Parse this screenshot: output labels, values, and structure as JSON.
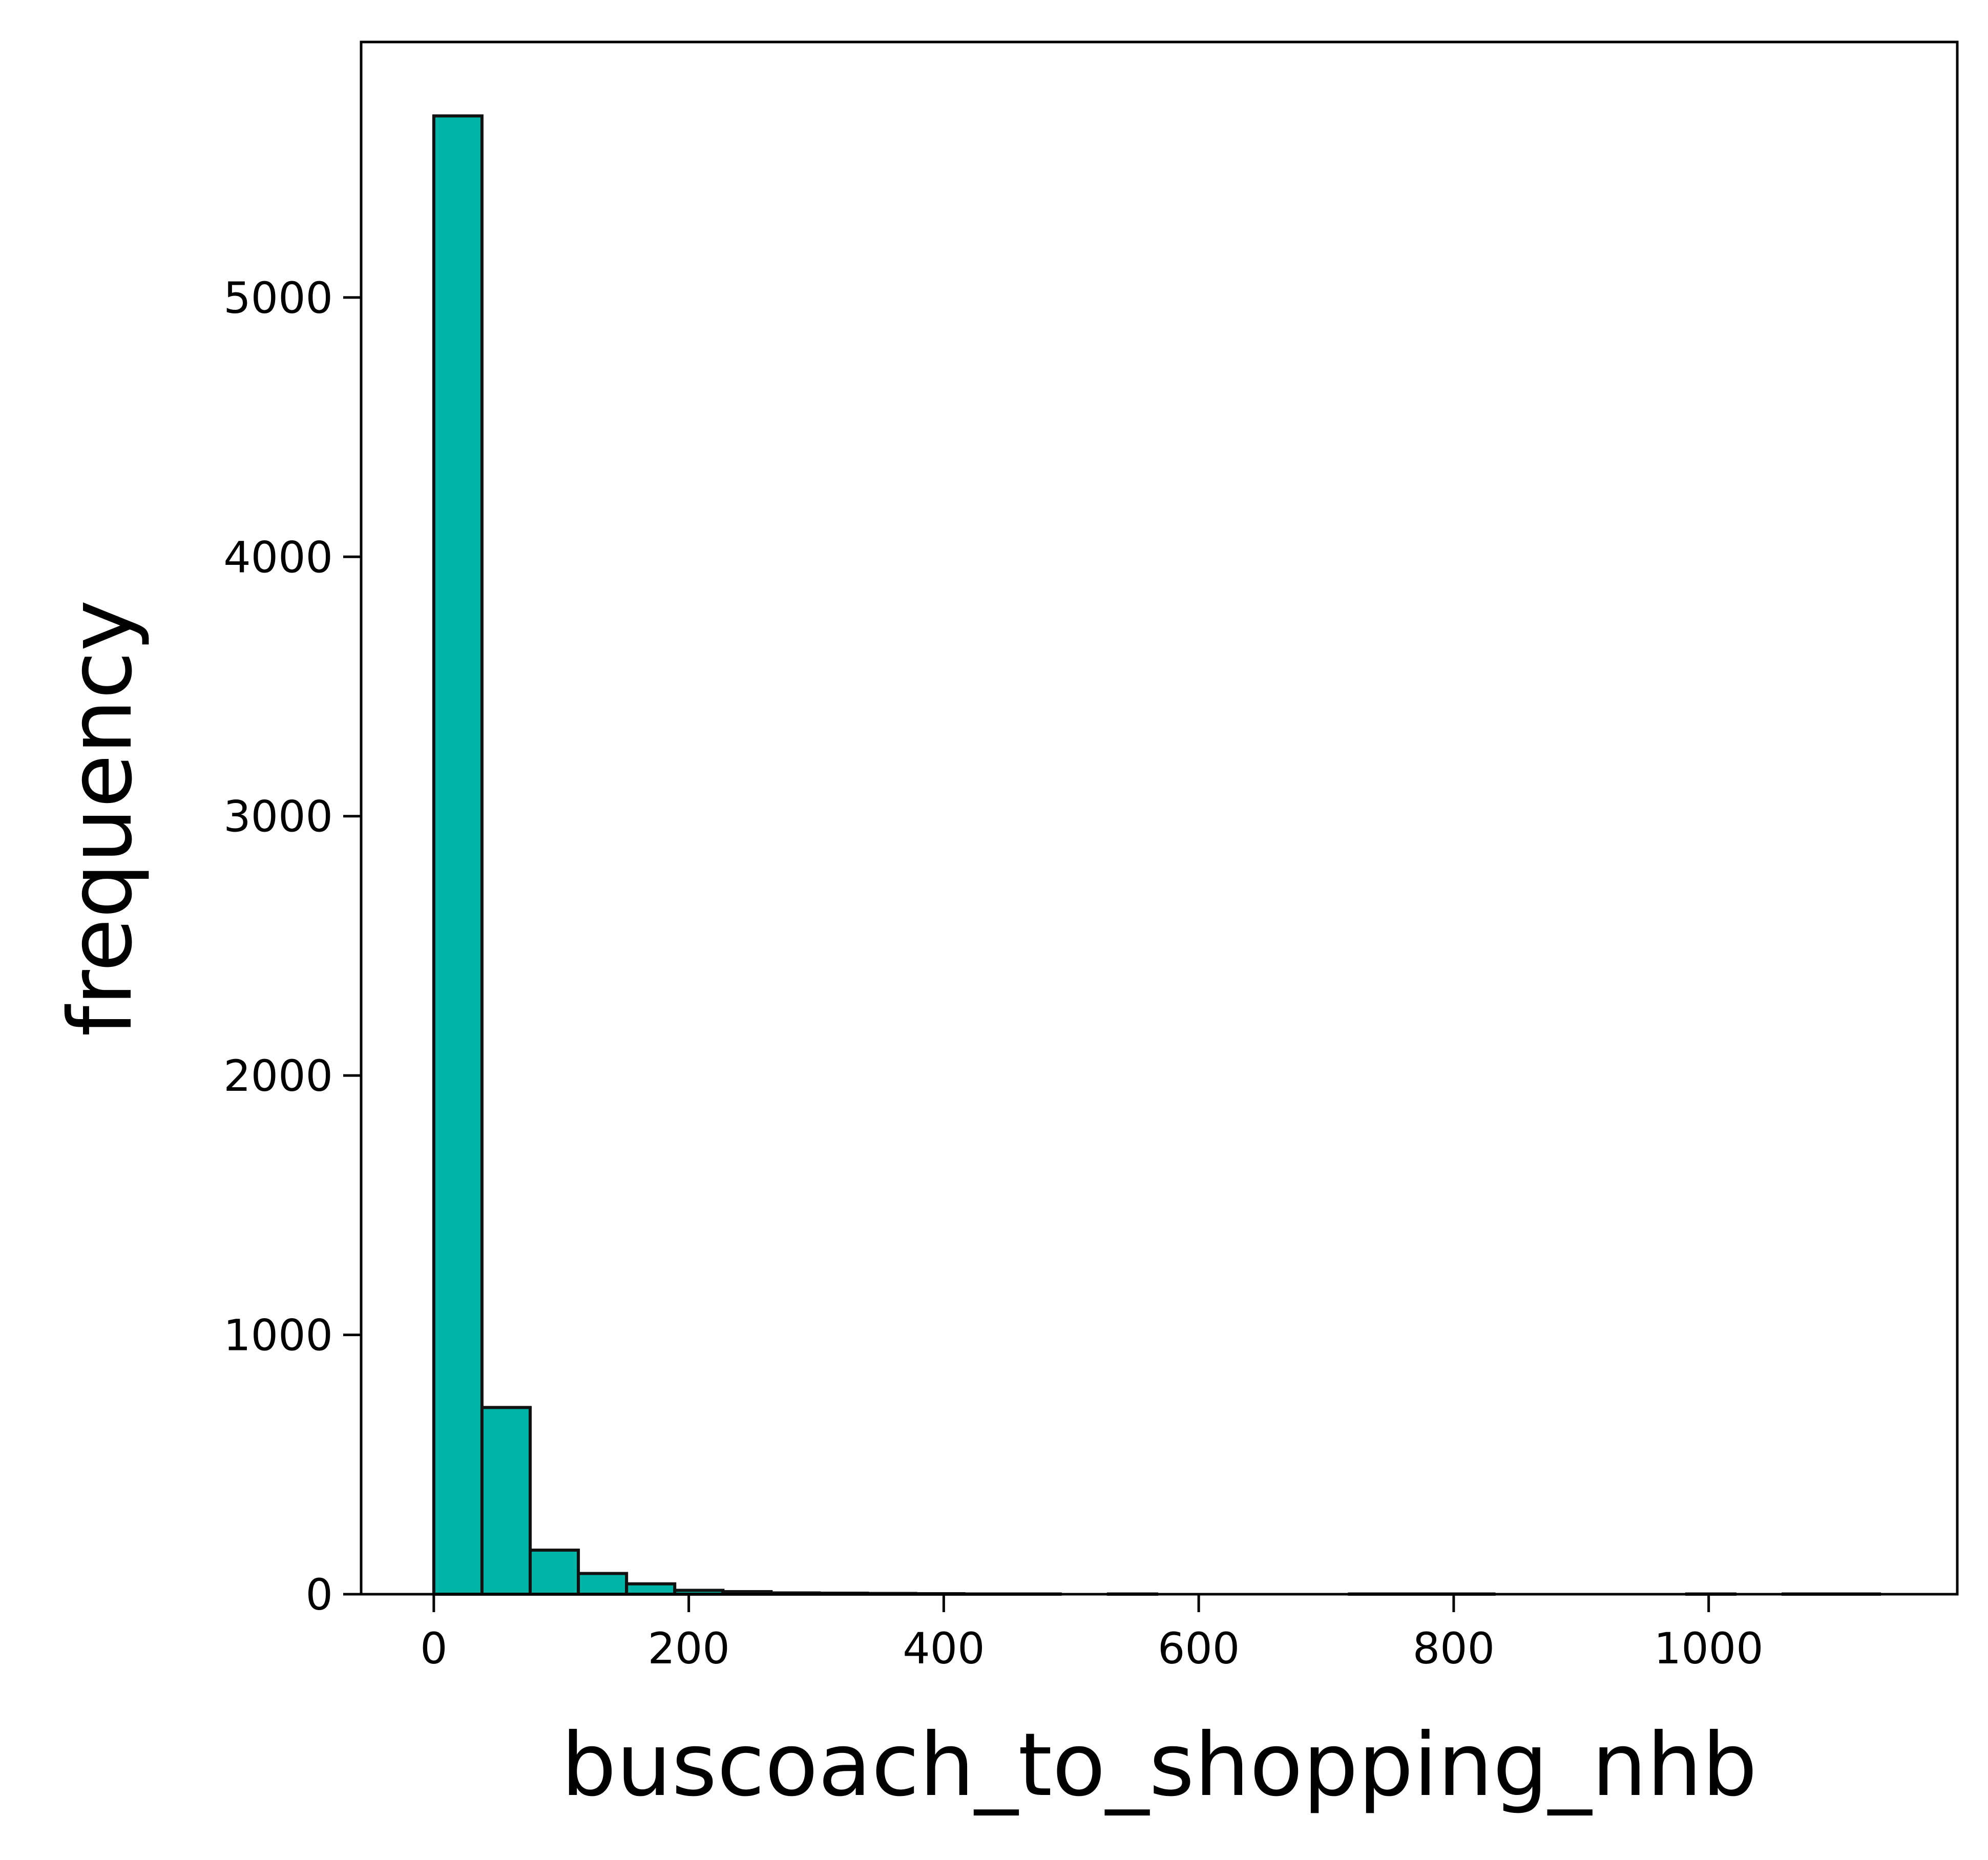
{
  "chart_data": {
    "type": "bar",
    "title": "",
    "xlabel": "buscoach_to_shopping_nhb",
    "ylabel": "frequency",
    "bar_color": "#00b4a6",
    "edge_color": "#111111",
    "grid": false,
    "bin_width": 37.8,
    "bins": [
      {
        "x0": 0.0,
        "count": 5700
      },
      {
        "x0": 37.8,
        "count": 720
      },
      {
        "x0": 75.6,
        "count": 170
      },
      {
        "x0": 113.4,
        "count": 80
      },
      {
        "x0": 151.2,
        "count": 40
      },
      {
        "x0": 189.0,
        "count": 15
      },
      {
        "x0": 226.8,
        "count": 10
      },
      {
        "x0": 264.6,
        "count": 5
      },
      {
        "x0": 302.4,
        "count": 4
      },
      {
        "x0": 340.2,
        "count": 3
      },
      {
        "x0": 378.0,
        "count": 2
      },
      {
        "x0": 415.8,
        "count": 1
      },
      {
        "x0": 453.6,
        "count": 1
      },
      {
        "x0": 491.4,
        "count": 0
      },
      {
        "x0": 529.2,
        "count": 1
      },
      {
        "x0": 567.0,
        "count": 0
      },
      {
        "x0": 604.8,
        "count": 0
      },
      {
        "x0": 642.6,
        "count": 0
      },
      {
        "x0": 680.4,
        "count": 0
      },
      {
        "x0": 718.2,
        "count": 1
      },
      {
        "x0": 756.0,
        "count": 1
      },
      {
        "x0": 793.8,
        "count": 1
      },
      {
        "x0": 831.6,
        "count": 0
      },
      {
        "x0": 869.4,
        "count": 0
      },
      {
        "x0": 907.2,
        "count": 0
      },
      {
        "x0": 945.0,
        "count": 0
      },
      {
        "x0": 982.8,
        "count": 1
      },
      {
        "x0": 1020.6,
        "count": 0
      },
      {
        "x0": 1058.4,
        "count": 1
      },
      {
        "x0": 1096.2,
        "count": 1
      }
    ],
    "xlim": [
      -57,
      1195
    ],
    "ylim": [
      0,
      5985
    ],
    "xticks": [
      0,
      200,
      400,
      600,
      800,
      1000
    ],
    "xtick_labels": [
      "0",
      "200",
      "400",
      "600",
      "800",
      "1000"
    ],
    "yticks": [
      0,
      1000,
      2000,
      3000,
      4000,
      5000
    ],
    "ytick_labels": [
      "0",
      "1000",
      "2000",
      "3000",
      "4000",
      "5000"
    ]
  }
}
